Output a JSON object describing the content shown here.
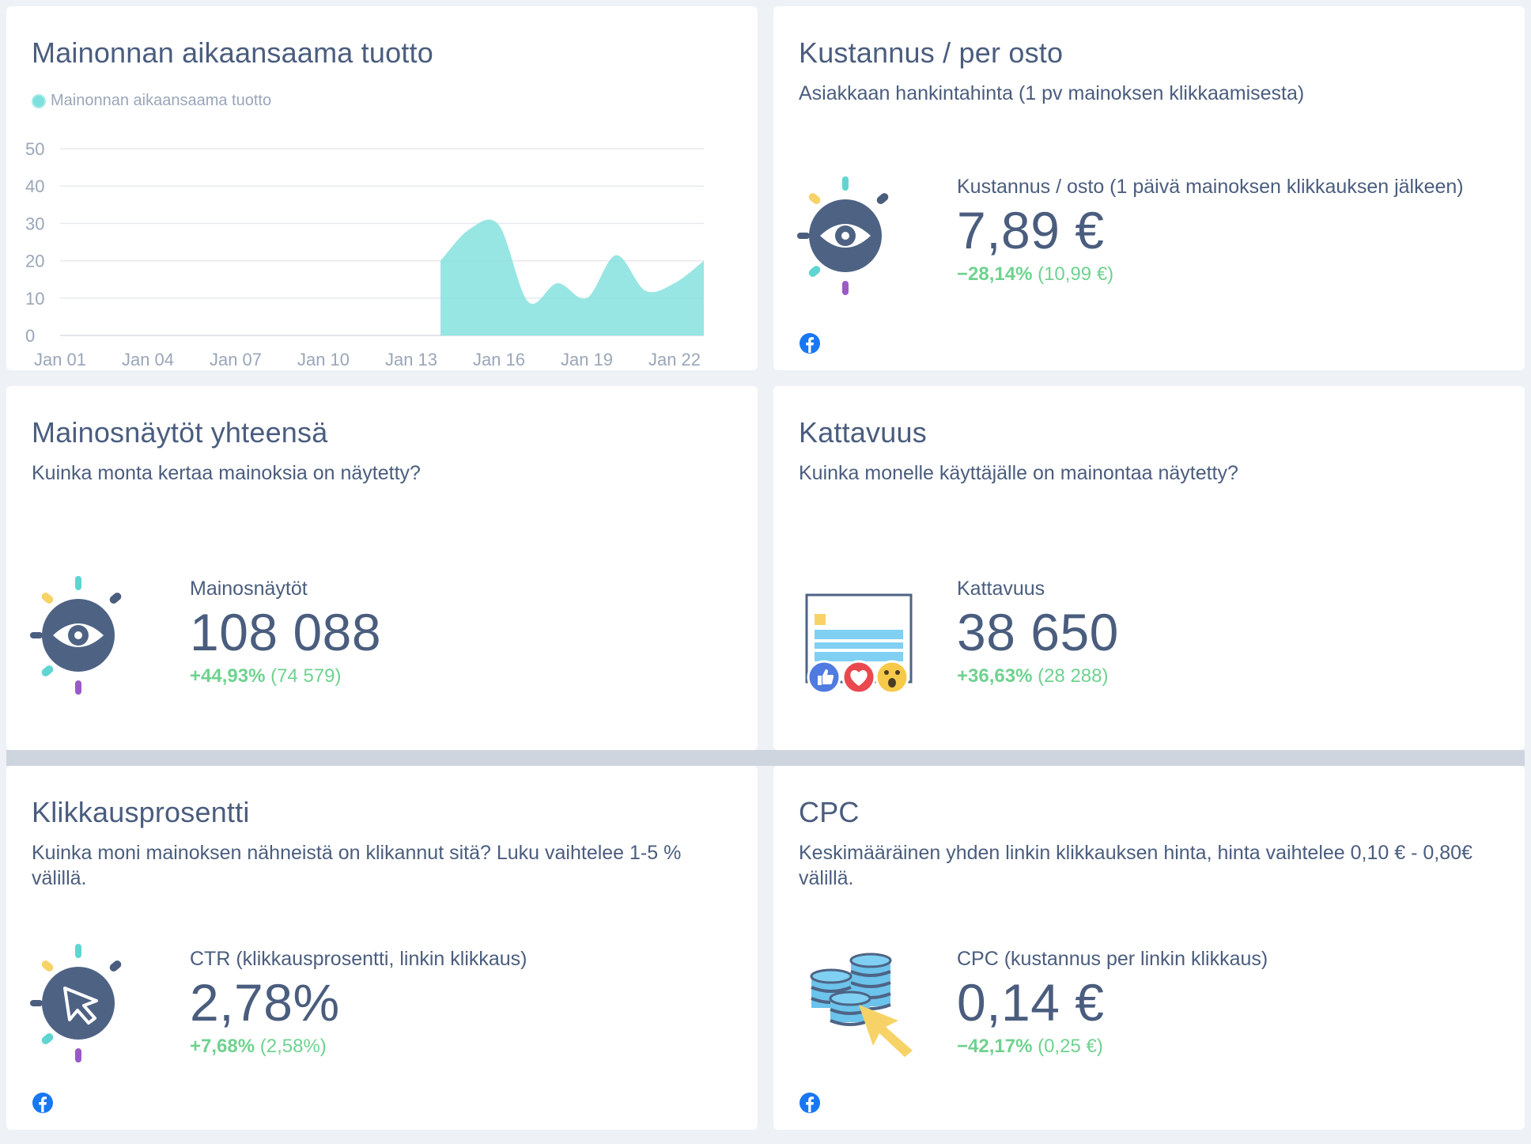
{
  "cards": {
    "revenue": {
      "title": "Mainonnan aikaansaama tuotto",
      "legend": "Mainonnan aikaansaama tuotto"
    },
    "cpa": {
      "title": "Kustannus / per osto",
      "subtitle": "Asiakkaan hankintahinta (1 pv mainoksen klikkaamisesta)",
      "label": "Kustannus / osto (1 päivä mainoksen klikkauksen jälkeen)",
      "value": "7,89 €",
      "change": "−28,14%",
      "previous": "(10,99 €)"
    },
    "impressions": {
      "title": "Mainosnäytöt yhteensä",
      "subtitle": "Kuinka monta kertaa mainoksia on näytetty?",
      "label": "Mainosnäytöt",
      "value": "108 088",
      "change": "+44,93%",
      "previous": "(74 579)"
    },
    "reach": {
      "title": "Kattavuus",
      "subtitle": "Kuinka monelle käyttäjälle on mainontaa näytetty?",
      "label": "Kattavuus",
      "value": "38 650",
      "change": "+36,63%",
      "previous": "(28 288)"
    },
    "ctr": {
      "title": "Klikkausprosentti",
      "subtitle": "Kuinka moni mainoksen nähneistä on klikannut sitä? Luku vaihtelee 1-5 % välillä.",
      "label": "CTR (klikkausprosentti, linkin klikkaus)",
      "value": "2,78%",
      "change": "+7,68%",
      "previous": "(2,58%)"
    },
    "cpc": {
      "title": "CPC",
      "subtitle": "Keskimääräinen yhden linkin klikkauksen hinta, hinta vaihtelee 0,10 € - 0,80€ välillä.",
      "label": "CPC (kustannus per linkin klikkaus)",
      "value": "0,14 €",
      "change": "−42,17%",
      "previous": "(0,25 €)"
    }
  },
  "icons": {
    "facebook": "facebook-icon",
    "eye": "eye-icon",
    "cursor": "cursor-icon",
    "reactions": "reactions-icon",
    "coins": "coins-icon"
  },
  "colors": {
    "area": "#7ee0dc",
    "positive": "#6fd28f",
    "text": "#4a5d7e",
    "facebook": "#1877f2"
  },
  "chart_data": {
    "type": "area",
    "title": "Mainonnan aikaansaama tuotto",
    "legend": [
      "Mainonnan aikaansaama tuotto"
    ],
    "legend_position": "top-left",
    "x": [
      "Jan 01",
      "Jan 02",
      "Jan 03",
      "Jan 04",
      "Jan 05",
      "Jan 06",
      "Jan 07",
      "Jan 08",
      "Jan 09",
      "Jan 10",
      "Jan 11",
      "Jan 12",
      "Jan 13",
      "Jan 14",
      "Jan 15",
      "Jan 16",
      "Jan 17",
      "Jan 18",
      "Jan 19",
      "Jan 20",
      "Jan 21",
      "Jan 22",
      "Jan 23"
    ],
    "x_tick_labels": [
      "Jan 01",
      "Jan 04",
      "Jan 07",
      "Jan 10",
      "Jan 13",
      "Jan 16",
      "Jan 19",
      "Jan 22"
    ],
    "series": [
      {
        "name": "Mainonnan aikaansaama tuotto",
        "values": [
          null,
          null,
          null,
          null,
          null,
          null,
          null,
          null,
          null,
          null,
          null,
          null,
          null,
          20,
          28.5,
          29.5,
          9,
          14,
          10,
          21.5,
          12,
          14,
          20
        ]
      }
    ],
    "ylim": [
      0,
      50
    ],
    "y_ticks": [
      0,
      10,
      20,
      30,
      40,
      50
    ],
    "grid": true
  }
}
